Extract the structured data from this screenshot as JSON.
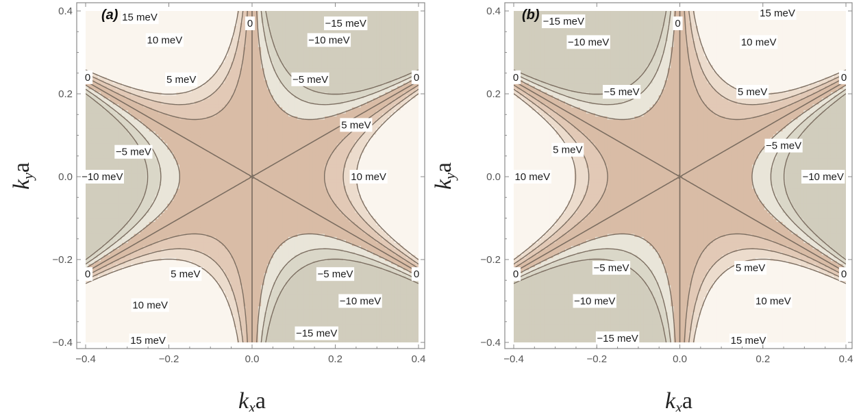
{
  "figure": {
    "panels": [
      {
        "panel_label": "(a)",
        "xlabel_main": "k",
        "xlabel_sub": "x",
        "xlabel_suffix": "a",
        "ylabel_main": "k",
        "ylabel_sub": "y",
        "ylabel_suffix": "a"
      },
      {
        "panel_label": "(b)",
        "xlabel_main": "k",
        "xlabel_sub": "x",
        "xlabel_suffix": "a",
        "ylabel_main": "k",
        "ylabel_sub": "y",
        "ylabel_suffix": "a"
      }
    ]
  },
  "chart_data": [
    {
      "type": "contour",
      "panel": "(a)",
      "xlabel": "kxa",
      "ylabel": "kya",
      "xlim": [
        -0.4,
        0.4
      ],
      "ylim": [
        -0.4,
        0.4
      ],
      "x_ticks": [
        "-0.4",
        "-0.2",
        "0.0",
        "0.2",
        "0.4"
      ],
      "y_ticks": [
        "-0.4",
        "-0.2",
        "0.0",
        "0.2",
        "0.4"
      ],
      "levels_meV": [
        -15,
        -10,
        -5,
        0,
        5,
        10,
        15
      ],
      "function": "E ∝ kx^3 - 3 kx ky^2 (sign +)",
      "sign": 1,
      "colors": {
        "neg_high": "#c9c5b4",
        "neg_mid": "#dad7c8",
        "neg_low": "#e9e5d9",
        "pos_low": "#e2c9b6",
        "pos_mid": "#ecdccd",
        "pos_high": "#f5ede3",
        "pos_top": "#faf5ee",
        "neg_top": "#d1cdbd",
        "core": "#d9bca6",
        "line": "#7b6d60"
      },
      "contour_labels": [
        {
          "text": "15 meV",
          "x": -0.27,
          "y": 0.385
        },
        {
          "text": "0",
          "x": -0.005,
          "y": 0.37
        },
        {
          "text": "−15 meV",
          "x": 0.225,
          "y": 0.37
        },
        {
          "text": "10 meV",
          "x": -0.21,
          "y": 0.33
        },
        {
          "text": "−10 meV",
          "x": 0.185,
          "y": 0.33
        },
        {
          "text": "0",
          "x": -0.395,
          "y": 0.24
        },
        {
          "text": "5 meV",
          "x": -0.17,
          "y": 0.235
        },
        {
          "text": "−5 meV",
          "x": 0.14,
          "y": 0.235
        },
        {
          "text": "0",
          "x": 0.395,
          "y": 0.24
        },
        {
          "text": "5 meV",
          "x": 0.25,
          "y": 0.125
        },
        {
          "text": "−5 meV",
          "x": -0.285,
          "y": 0.06
        },
        {
          "text": "10 meV",
          "x": 0.28,
          "y": 0.0
        },
        {
          "text": "−10 meV",
          "x": -0.36,
          "y": 0.0
        },
        {
          "text": "5 meV",
          "x": -0.16,
          "y": -0.235
        },
        {
          "text": "−5 meV",
          "x": 0.2,
          "y": -0.235
        },
        {
          "text": "0",
          "x": -0.395,
          "y": -0.235
        },
        {
          "text": "0",
          "x": 0.395,
          "y": -0.235
        },
        {
          "text": "−10 meV",
          "x": 0.26,
          "y": -0.3
        },
        {
          "text": "10 meV",
          "x": -0.245,
          "y": -0.31
        },
        {
          "text": "−15 meV",
          "x": 0.155,
          "y": -0.378
        },
        {
          "text": "15 meV",
          "x": -0.25,
          "y": -0.395
        }
      ]
    },
    {
      "type": "contour",
      "panel": "(b)",
      "xlabel": "kxa",
      "ylabel": "kya",
      "xlim": [
        -0.4,
        0.4
      ],
      "ylim": [
        -0.4,
        0.4
      ],
      "x_ticks": [
        "-0.4",
        "-0.2",
        "0.0",
        "0.2",
        "0.4"
      ],
      "y_ticks": [
        "-0.4",
        "-0.2",
        "0.0",
        "0.2",
        "0.4"
      ],
      "levels_meV": [
        -15,
        -10,
        -5,
        0,
        5,
        10,
        15
      ],
      "function": "E ∝ -(kx^3 - 3 kx ky^2) (sign -)",
      "sign": -1,
      "colors": {
        "neg_high": "#c9c5b4",
        "neg_mid": "#dad7c8",
        "neg_low": "#e9e5d9",
        "pos_low": "#e2c9b6",
        "pos_mid": "#ecdccd",
        "pos_high": "#f5ede3",
        "pos_top": "#faf5ee",
        "neg_top": "#d1cdbd",
        "core": "#d9bca6",
        "line": "#7b6d60"
      },
      "contour_labels": [
        {
          "text": "15 meV",
          "x": 0.235,
          "y": 0.395
        },
        {
          "text": "−15 meV",
          "x": -0.28,
          "y": 0.375
        },
        {
          "text": "0",
          "x": -0.005,
          "y": 0.37
        },
        {
          "text": "−10 meV",
          "x": -0.22,
          "y": 0.325
        },
        {
          "text": "10 meV",
          "x": 0.19,
          "y": 0.325
        },
        {
          "text": "0",
          "x": -0.395,
          "y": 0.24
        },
        {
          "text": "0",
          "x": 0.395,
          "y": 0.24
        },
        {
          "text": "−5 meV",
          "x": -0.14,
          "y": 0.205
        },
        {
          "text": "5 meV",
          "x": 0.175,
          "y": 0.205
        },
        {
          "text": "5 meV",
          "x": -0.27,
          "y": 0.065
        },
        {
          "text": "−5 meV",
          "x": 0.25,
          "y": 0.075
        },
        {
          "text": "10 meV",
          "x": -0.355,
          "y": 0.0
        },
        {
          "text": "−10 meV",
          "x": 0.345,
          "y": 0.0
        },
        {
          "text": "−5 meV",
          "x": -0.165,
          "y": -0.22
        },
        {
          "text": "5 meV",
          "x": 0.17,
          "y": -0.22
        },
        {
          "text": "0",
          "x": -0.395,
          "y": -0.235
        },
        {
          "text": "0",
          "x": 0.395,
          "y": -0.235
        },
        {
          "text": "−10 meV",
          "x": -0.205,
          "y": -0.3
        },
        {
          "text": "10 meV",
          "x": 0.225,
          "y": -0.3
        },
        {
          "text": "−15 meV",
          "x": -0.15,
          "y": -0.39
        },
        {
          "text": "15 meV",
          "x": 0.165,
          "y": -0.395
        }
      ]
    }
  ]
}
